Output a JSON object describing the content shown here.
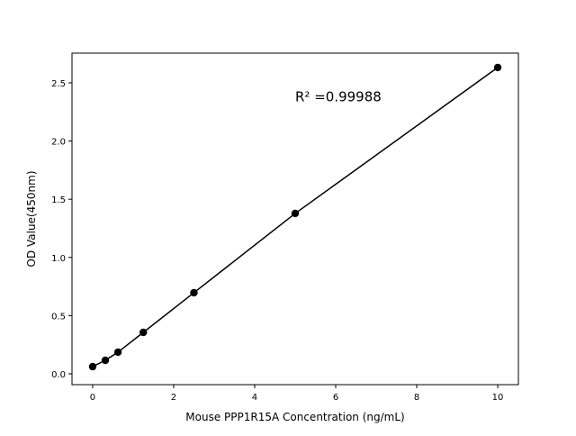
{
  "chart_data": {
    "type": "line",
    "title": "",
    "xlabel": "Mouse PPP1R15A Concentration (ng/mL)",
    "ylabel": "OD Value(450nm)",
    "xlim": [
      -0.51,
      10.51
    ],
    "ylim": [
      -0.093,
      2.755
    ],
    "x_ticks": [
      0,
      2,
      4,
      6,
      8,
      10
    ],
    "x_tick_labels": [
      "0",
      "2",
      "4",
      "6",
      "8",
      "10"
    ],
    "y_ticks": [
      0,
      0.5,
      1.0,
      1.5,
      2.0,
      2.5
    ],
    "y_tick_labels": [
      "0.0",
      "0.5",
      "1.0",
      "1.5",
      "2.0",
      "2.5"
    ],
    "grid": false,
    "series": [
      {
        "x": [
          0,
          0.3125,
          0.625,
          1.25,
          2.5,
          5,
          10
        ],
        "y": [
          0.062,
          0.116,
          0.186,
          0.356,
          0.697,
          1.378,
          2.632
        ],
        "color": "#000000",
        "marker": "circle"
      }
    ],
    "annotations": [
      {
        "text": "R² =0.99988",
        "x": 5,
        "y": 2.38
      }
    ]
  }
}
